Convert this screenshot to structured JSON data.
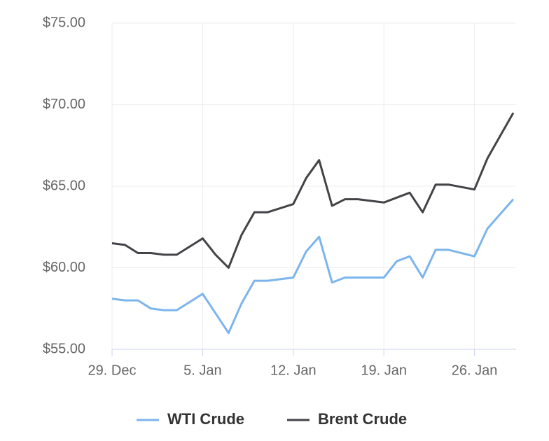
{
  "chart_data": {
    "type": "line",
    "x": [
      "29. Dec",
      "30. Dec",
      "31. Dec",
      "1. Jan",
      "2. Jan",
      "3. Jan",
      "5. Jan",
      "6. Jan",
      "7. Jan",
      "8. Jan",
      "9. Jan",
      "10. Jan",
      "12. Jan",
      "13. Jan",
      "14. Jan",
      "15. Jan",
      "16. Jan",
      "17. Jan",
      "19. Jan",
      "20. Jan",
      "21. Jan",
      "22. Jan",
      "23. Jan",
      "24. Jan",
      "26. Jan",
      "27. Jan",
      "28. Jan",
      "29. Jan"
    ],
    "series": [
      {
        "name": "WTI Crude",
        "color": "#7cb5ec",
        "values": [
          58.1,
          58.0,
          58.0,
          57.5,
          57.4,
          57.4,
          58.4,
          57.2,
          56.0,
          57.8,
          59.2,
          59.2,
          59.4,
          61.0,
          61.9,
          59.1,
          59.4,
          59.4,
          59.4,
          60.4,
          60.7,
          59.4,
          61.1,
          61.1,
          60.7,
          62.4,
          63.3,
          64.2
        ]
      },
      {
        "name": "Brent Crude",
        "color": "#434348",
        "values": [
          61.5,
          61.4,
          60.9,
          60.9,
          60.8,
          60.8,
          61.8,
          60.8,
          60.0,
          62.0,
          63.4,
          63.4,
          63.9,
          65.5,
          66.6,
          63.8,
          64.2,
          64.2,
          64.0,
          64.3,
          64.6,
          63.4,
          65.1,
          65.1,
          64.8,
          66.7,
          68.1,
          69.5
        ]
      }
    ],
    "xlim": [
      "29. Dec",
      "29. Jan"
    ],
    "xticks": [
      "29. Dec",
      "5. Jan",
      "12. Jan",
      "19. Jan",
      "26. Jan"
    ],
    "ylim": [
      55,
      75
    ],
    "yticks": [
      {
        "value": 55,
        "label": "$55.00"
      },
      {
        "value": 60,
        "label": "$60.00"
      },
      {
        "value": 65,
        "label": "$65.00"
      },
      {
        "value": 70,
        "label": "$70.00"
      },
      {
        "value": 75,
        "label": "$75.00"
      }
    ],
    "grid": true,
    "legend": "bottom"
  }
}
